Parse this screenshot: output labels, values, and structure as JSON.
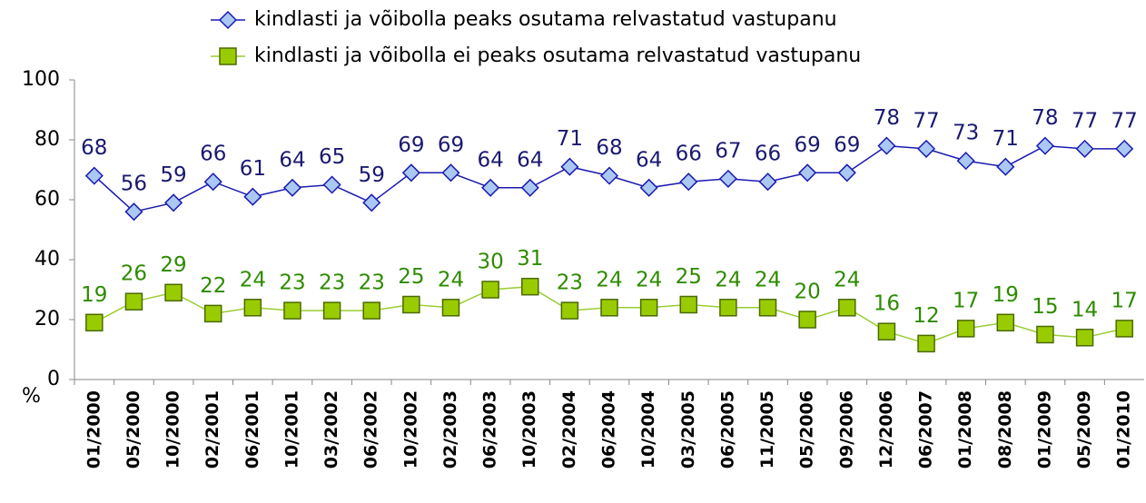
{
  "chart_data": {
    "type": "line",
    "ylabel": "%",
    "categories": [
      "01/2000",
      "05/2000",
      "10/2000",
      "02/2001",
      "06/2001",
      "10/2001",
      "03/2002",
      "06/2002",
      "10/2002",
      "02/2003",
      "06/2003",
      "10/2003",
      "02/2004",
      "06/2004",
      "10/2004",
      "03/2005",
      "06/2005",
      "11/2005",
      "05/2006",
      "09/2006",
      "12/2006",
      "06/2007",
      "01/2008",
      "08/2008",
      "01/2009",
      "05/2009",
      "01/2010"
    ],
    "series": [
      {
        "name": "kindlasti ja võibolla peaks osutama relvastatud vastupanu",
        "color": "#1a1ab0",
        "marker": "diamond",
        "marker_color": "#aac8f2",
        "label_color": "#1a1a70",
        "values": [
          68,
          56,
          59,
          66,
          61,
          64,
          65,
          59,
          69,
          69,
          64,
          64,
          71,
          68,
          64,
          66,
          67,
          66,
          69,
          69,
          78,
          77,
          73,
          71,
          78,
          77,
          77
        ]
      },
      {
        "name": "kindlasti ja võibolla ei peaks osutama relvastatud vastupanu",
        "color": "#9acd32",
        "marker": "square",
        "marker_color": "#99cc00",
        "label_color": "#2e8b00",
        "values": [
          19,
          26,
          29,
          22,
          24,
          23,
          23,
          23,
          25,
          24,
          30,
          31,
          23,
          24,
          24,
          25,
          24,
          24,
          20,
          24,
          16,
          12,
          17,
          19,
          15,
          14,
          17
        ]
      }
    ],
    "ylim": [
      0,
      100
    ],
    "yticks": [
      0,
      20,
      40,
      60,
      80,
      100
    ]
  }
}
